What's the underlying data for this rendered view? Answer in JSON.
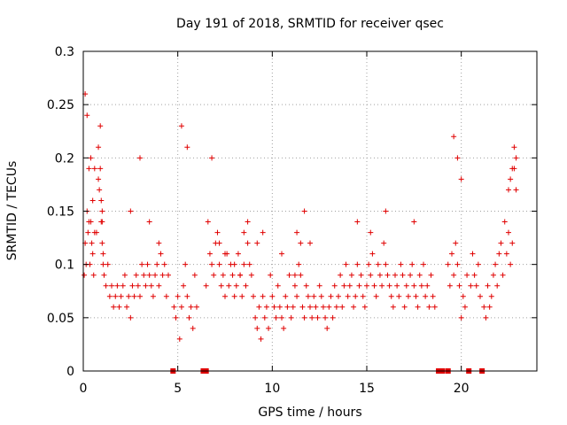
{
  "chart_data": {
    "type": "scatter",
    "title": "Day 191 of 2018, SRMTID for receiver qsec",
    "xlabel": "GPS time / hours",
    "ylabel": "SRMTID / TECUs",
    "xlim": [
      0,
      24.0
    ],
    "ylim": [
      0,
      0.3
    ],
    "xticks": [
      0,
      5,
      10,
      15,
      20
    ],
    "xtick_labels": [
      "0",
      "5",
      "10",
      "15",
      "20"
    ],
    "yticks": [
      0,
      0.05,
      0.1,
      0.15,
      0.2,
      0.25,
      0.3
    ],
    "ytick_labels": [
      "0",
      "0.05",
      "0.1",
      "0.15",
      "0.2",
      "0.25",
      "0.3"
    ],
    "grid": true,
    "marker": "plus",
    "color": "#e00000",
    "series": [
      {
        "name": "SRMTID",
        "x": [
          0.05,
          0.1,
          0.15,
          0.2,
          0.25,
          0.3,
          0.35,
          0.4,
          0.45,
          0.5,
          0.55,
          0.6,
          0.7,
          0.8,
          0.85,
          0.9,
          0.95,
          1.0,
          1.05,
          1.1,
          1.2,
          1.3,
          1.4,
          1.5,
          1.6,
          1.7,
          1.8,
          1.9,
          2.0,
          2.1,
          2.2,
          2.3,
          2.4,
          2.5,
          2.6,
          2.7,
          2.8,
          2.9,
          3.0,
          3.1,
          3.2,
          3.3,
          3.4,
          3.5,
          3.6,
          3.7,
          3.8,
          3.9,
          4.0,
          4.1,
          4.2,
          4.3,
          4.4,
          4.5,
          4.8,
          4.9,
          5.0,
          5.1,
          5.2,
          5.3,
          5.4,
          5.5,
          5.6,
          5.7,
          5.8,
          5.9,
          6.0,
          6.5,
          6.6,
          6.7,
          6.8,
          6.9,
          7.0,
          7.1,
          7.2,
          7.3,
          7.4,
          7.5,
          7.6,
          7.7,
          7.8,
          7.9,
          8.0,
          8.1,
          8.2,
          8.3,
          8.4,
          8.5,
          8.6,
          8.7,
          8.8,
          8.9,
          9.0,
          9.1,
          9.2,
          9.3,
          9.4,
          9.5,
          9.6,
          9.7,
          9.8,
          9.9,
          10.0,
          10.1,
          10.2,
          10.3,
          10.4,
          10.5,
          10.6,
          10.7,
          10.8,
          10.9,
          11.0,
          11.1,
          11.2,
          11.3,
          11.4,
          11.5,
          11.6,
          11.7,
          11.8,
          11.9,
          12.0,
          12.1,
          12.2,
          12.3,
          12.4,
          12.5,
          12.6,
          12.7,
          12.8,
          12.9,
          13.0,
          13.1,
          13.2,
          13.3,
          13.4,
          13.5,
          13.6,
          13.7,
          13.8,
          13.9,
          14.0,
          14.1,
          14.2,
          14.3,
          14.4,
          14.5,
          14.6,
          14.7,
          14.8,
          14.9,
          15.0,
          15.1,
          15.2,
          15.3,
          15.4,
          15.5,
          15.6,
          15.7,
          15.8,
          15.9,
          16.0,
          16.1,
          16.2,
          16.3,
          16.4,
          16.5,
          16.6,
          16.7,
          16.8,
          16.9,
          17.0,
          17.1,
          17.2,
          17.3,
          17.4,
          17.5,
          17.6,
          17.7,
          17.8,
          17.9,
          18.0,
          18.1,
          18.2,
          18.3,
          18.4,
          18.5,
          18.6,
          19.3,
          19.4,
          19.5,
          19.6,
          19.7,
          19.8,
          19.9,
          20.0,
          20.1,
          20.2,
          20.3,
          20.5,
          20.6,
          20.7,
          20.8,
          20.9,
          21.0,
          21.2,
          21.3,
          21.4,
          21.5,
          21.6,
          21.7,
          21.8,
          21.9,
          22.0,
          22.1,
          22.2,
          22.3,
          22.4,
          22.5,
          22.6,
          22.7,
          22.8,
          22.9,
          0.1,
          0.2,
          0.3,
          0.4,
          0.5,
          0.6,
          0.8,
          0.9,
          0.95,
          1.0,
          1.0,
          1.05,
          2.5,
          3.0,
          3.5,
          4.0,
          5.2,
          5.5,
          6.8,
          7.2,
          7.5,
          8.0,
          8.3,
          8.5,
          8.7,
          9.2,
          9.5,
          10.5,
          11.2,
          11.3,
          11.5,
          11.7,
          12.0,
          14.5,
          15.2,
          16.0,
          17.5,
          19.6,
          19.8,
          20.0,
          22.8,
          22.9,
          22.7,
          22.6,
          22.5
        ],
        "y": [
          0.09,
          0.12,
          0.1,
          0.15,
          0.13,
          0.14,
          0.1,
          0.14,
          0.12,
          0.11,
          0.09,
          0.13,
          0.13,
          0.21,
          0.17,
          0.23,
          0.14,
          0.12,
          0.1,
          0.09,
          0.08,
          0.1,
          0.07,
          0.08,
          0.06,
          0.07,
          0.08,
          0.06,
          0.07,
          0.08,
          0.09,
          0.06,
          0.07,
          0.05,
          0.08,
          0.07,
          0.09,
          0.08,
          0.07,
          0.1,
          0.09,
          0.08,
          0.1,
          0.09,
          0.08,
          0.07,
          0.09,
          0.1,
          0.08,
          0.11,
          0.09,
          0.1,
          0.07,
          0.09,
          0.06,
          0.05,
          0.07,
          0.03,
          0.06,
          0.08,
          0.1,
          0.07,
          0.05,
          0.06,
          0.04,
          0.09,
          0.06,
          0.08,
          0.14,
          0.11,
          0.1,
          0.09,
          0.12,
          0.13,
          0.1,
          0.08,
          0.09,
          0.07,
          0.11,
          0.08,
          0.1,
          0.09,
          0.07,
          0.08,
          0.11,
          0.09,
          0.07,
          0.1,
          0.08,
          0.12,
          0.1,
          0.09,
          0.07,
          0.05,
          0.04,
          0.06,
          0.03,
          0.07,
          0.05,
          0.06,
          0.04,
          0.09,
          0.07,
          0.06,
          0.05,
          0.08,
          0.06,
          0.05,
          0.04,
          0.07,
          0.06,
          0.09,
          0.05,
          0.06,
          0.08,
          0.07,
          0.1,
          0.09,
          0.06,
          0.05,
          0.08,
          0.07,
          0.06,
          0.05,
          0.07,
          0.06,
          0.05,
          0.08,
          0.07,
          0.06,
          0.05,
          0.04,
          0.06,
          0.07,
          0.05,
          0.08,
          0.06,
          0.07,
          0.09,
          0.06,
          0.08,
          0.1,
          0.07,
          0.08,
          0.09,
          0.06,
          0.07,
          0.1,
          0.08,
          0.09,
          0.07,
          0.06,
          0.08,
          0.1,
          0.09,
          0.11,
          0.08,
          0.07,
          0.1,
          0.09,
          0.08,
          0.12,
          0.1,
          0.09,
          0.08,
          0.07,
          0.06,
          0.09,
          0.08,
          0.07,
          0.1,
          0.09,
          0.06,
          0.08,
          0.07,
          0.09,
          0.1,
          0.08,
          0.07,
          0.06,
          0.09,
          0.08,
          0.1,
          0.07,
          0.08,
          0.06,
          0.09,
          0.07,
          0.06,
          0.1,
          0.08,
          0.11,
          0.09,
          0.12,
          0.1,
          0.08,
          0.05,
          0.07,
          0.06,
          0.09,
          0.08,
          0.11,
          0.09,
          0.08,
          0.1,
          0.07,
          0.06,
          0.05,
          0.08,
          0.06,
          0.07,
          0.09,
          0.1,
          0.08,
          0.11,
          0.12,
          0.09,
          0.14,
          0.11,
          0.13,
          0.1,
          0.12,
          0.19,
          0.17,
          0.26,
          0.24,
          0.19,
          0.2,
          0.16,
          0.19,
          0.18,
          0.19,
          0.16,
          0.15,
          0.14,
          0.11,
          0.15,
          0.2,
          0.14,
          0.12,
          0.23,
          0.21,
          0.2,
          0.12,
          0.11,
          0.1,
          0.09,
          0.13,
          0.14,
          0.12,
          0.13,
          0.11,
          0.09,
          0.13,
          0.12,
          0.15,
          0.12,
          0.14,
          0.13,
          0.15,
          0.14,
          0.22,
          0.2,
          0.18,
          0.21,
          0.2,
          0.19,
          0.18,
          0.17
        ]
      }
    ],
    "gap_markers_x": [
      4.75,
      6.35,
      6.5,
      18.8,
      19.0,
      19.3,
      20.4,
      21.1
    ],
    "gap_markers_y": 0
  }
}
